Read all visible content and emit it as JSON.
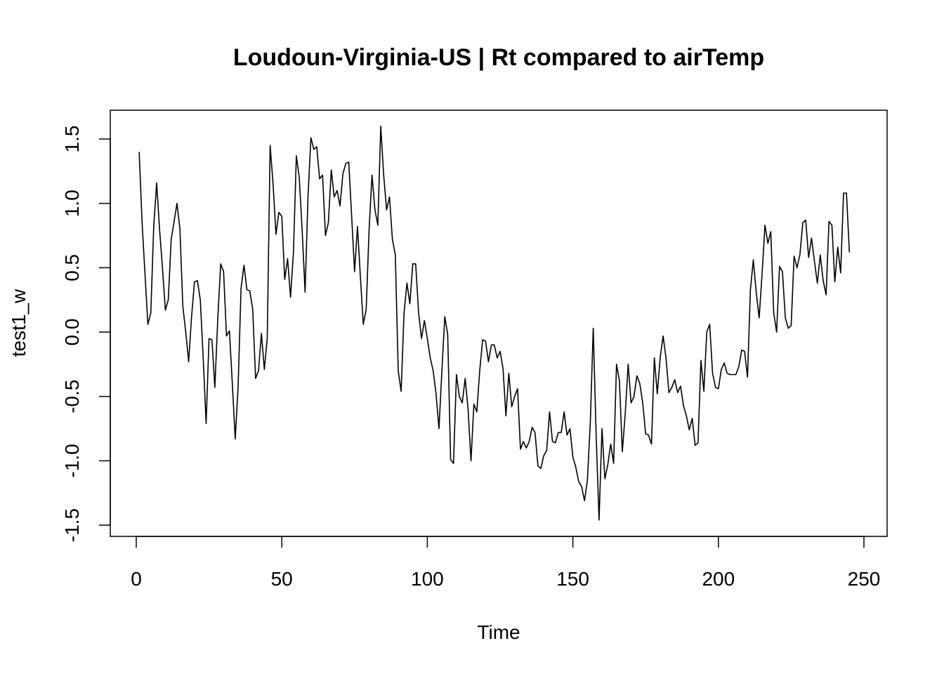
{
  "chart_data": {
    "type": "line",
    "title": "Loudoun-Virginia-US | Rt compared to airTemp",
    "xlabel": "Time",
    "ylabel": "test1_w",
    "xlim": [
      1,
      248
    ],
    "ylim": [
      -1.5,
      1.6
    ],
    "x_ticks": [
      0,
      50,
      100,
      150,
      200,
      250
    ],
    "x_tick_labels": [
      "0",
      "50",
      "100",
      "150",
      "200",
      "250"
    ],
    "y_ticks": [
      -1.5,
      -1.0,
      -0.5,
      0.0,
      0.5,
      1.0,
      1.5
    ],
    "y_tick_labels": [
      "-1.5",
      "-1.0",
      "-0.5",
      "0.0",
      "0.5",
      "1.0",
      "1.5"
    ],
    "grid": false,
    "line_color": "#000000",
    "x_start": 1,
    "series": [
      {
        "values": [
          1.4,
          0.85,
          0.45,
          0.06,
          0.15,
          0.82,
          1.16,
          0.8,
          0.5,
          0.17,
          0.25,
          0.72,
          0.86,
          1.0,
          0.8,
          0.2,
          0.0,
          -0.23,
          0.12,
          0.39,
          0.4,
          0.25,
          -0.2,
          -0.71,
          -0.05,
          -0.06,
          -0.43,
          0.1,
          0.53,
          0.47,
          -0.03,
          0.01,
          -0.4,
          -0.83,
          -0.42,
          0.34,
          0.52,
          0.33,
          0.32,
          0.18,
          -0.36,
          -0.3,
          -0.01,
          -0.29,
          -0.05,
          1.45,
          1.15,
          0.76,
          0.93,
          0.9,
          0.41,
          0.57,
          0.27,
          0.62,
          1.37,
          1.2,
          0.79,
          0.31,
          1.05,
          1.51,
          1.42,
          1.44,
          1.19,
          1.22,
          0.75,
          0.85,
          1.26,
          1.05,
          1.1,
          0.98,
          1.23,
          1.31,
          1.32,
          0.9,
          0.47,
          0.82,
          0.43,
          0.06,
          0.18,
          0.8,
          1.22,
          0.95,
          0.83,
          1.6,
          1.22,
          0.95,
          1.05,
          0.72,
          0.6,
          -0.3,
          -0.46,
          0.15,
          0.38,
          0.22,
          0.53,
          0.53,
          0.15,
          -0.05,
          0.09,
          -0.05,
          -0.2,
          -0.3,
          -0.48,
          -0.75,
          -0.3,
          0.12,
          -0.02,
          -0.99,
          -1.02,
          -0.33,
          -0.5,
          -0.55,
          -0.36,
          -0.6,
          -1.0,
          -0.56,
          -0.62,
          -0.3,
          -0.06,
          -0.07,
          -0.23,
          -0.1,
          -0.1,
          -0.2,
          -0.15,
          -0.28,
          -0.65,
          -0.32,
          -0.58,
          -0.5,
          -0.44,
          -0.91,
          -0.85,
          -0.9,
          -0.85,
          -0.74,
          -0.78,
          -1.04,
          -1.06,
          -0.96,
          -0.92,
          -0.62,
          -0.85,
          -0.86,
          -0.78,
          -0.78,
          -0.62,
          -0.8,
          -0.75,
          -0.97,
          -1.05,
          -1.16,
          -1.2,
          -1.31,
          -1.15,
          -0.7,
          0.03,
          -0.8,
          -1.46,
          -0.75,
          -1.14,
          -1.03,
          -0.87,
          -1.02,
          -0.25,
          -0.38,
          -0.93,
          -0.63,
          -0.25,
          -0.55,
          -0.5,
          -0.34,
          -0.4,
          -0.55,
          -0.79,
          -0.8,
          -0.87,
          -0.2,
          -0.48,
          -0.2,
          -0.03,
          -0.2,
          -0.47,
          -0.43,
          -0.37,
          -0.47,
          -0.42,
          -0.57,
          -0.65,
          -0.76,
          -0.67,
          -0.88,
          -0.86,
          -0.22,
          -0.46,
          0.0,
          0.06,
          -0.32,
          -0.43,
          -0.44,
          -0.29,
          -0.24,
          -0.32,
          -0.33,
          -0.33,
          -0.33,
          -0.27,
          -0.14,
          -0.15,
          -0.35,
          0.33,
          0.56,
          0.31,
          0.11,
          0.45,
          0.83,
          0.69,
          0.78,
          0.15,
          0.0,
          0.51,
          0.47,
          0.11,
          0.03,
          0.05,
          0.59,
          0.5,
          0.6,
          0.85,
          0.87,
          0.58,
          0.73,
          0.55,
          0.38,
          0.6,
          0.4,
          0.29,
          0.86,
          0.83,
          0.39,
          0.66,
          0.46,
          1.08,
          1.08,
          0.62
        ]
      }
    ]
  }
}
